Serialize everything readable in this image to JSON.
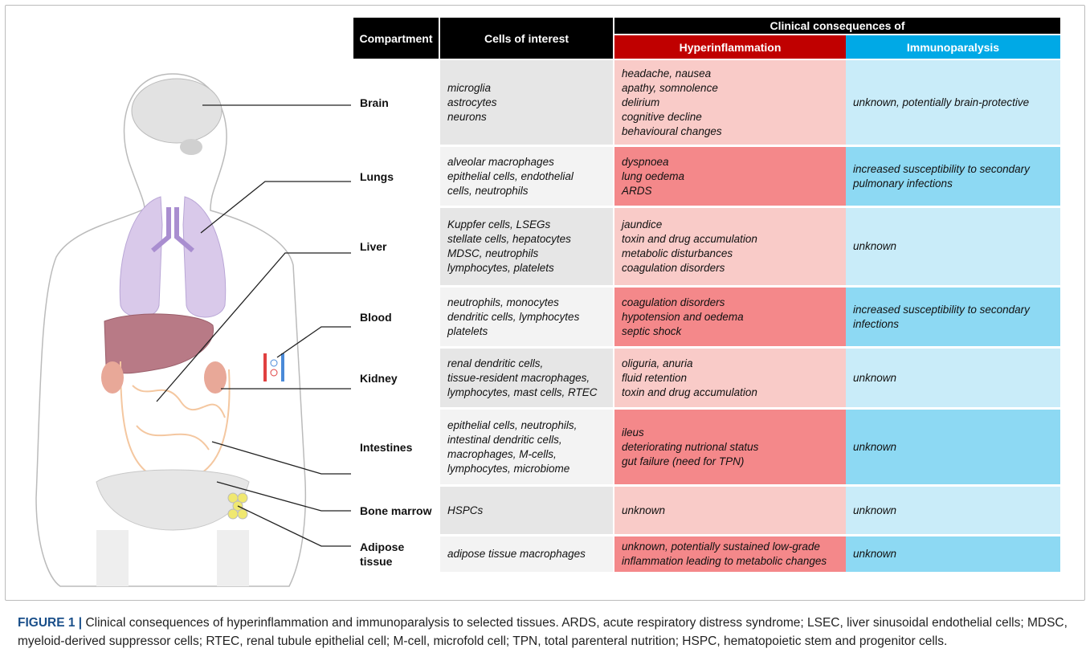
{
  "table": {
    "headers": {
      "compartment": "Compartment",
      "cells": "Cells of interest",
      "clinical": "Clinical consequences of",
      "hyper": "Hyperinflammation",
      "immuno": "Immunoparalysis"
    },
    "header_colors": {
      "dark": "#000000",
      "hyper": "#c00000",
      "immuno": "#00a9e6"
    },
    "rows": [
      {
        "compartment": [
          "Brain"
        ],
        "cells": [
          "microglia",
          "astrocytes",
          "neurons"
        ],
        "hyper": [
          "headache, nausea",
          "apathy, somnolence",
          "delirium",
          "cognitive decline",
          "behavioural changes"
        ],
        "immuno": [
          "unknown, potentially brain-protective"
        ],
        "hyper_color": "#f9cbc8",
        "immuno_color": "#c9ecf9",
        "cells_color": "#e6e6e6"
      },
      {
        "compartment": [
          "Lungs"
        ],
        "cells": [
          "alveolar macrophages",
          "epithelial cells, endothelial",
          "cells, neutrophils"
        ],
        "hyper": [
          "dyspnoea",
          "lung oedema",
          "ARDS"
        ],
        "immuno": [
          "increased susceptibility to secondary",
          "pulmonary infections"
        ],
        "hyper_color": "#f4888a",
        "immuno_color": "#8dd9f3",
        "cells_color": "#f3f3f3"
      },
      {
        "compartment": [
          "Liver"
        ],
        "cells": [
          "Kuppfer cells, LSEGs",
          "stellate cells, hepatocytes",
          "MDSC, neutrophils",
          "lymphocytes,  platelets"
        ],
        "hyper": [
          "jaundice",
          "toxin and drug accumulation",
          "metabolic disturbances",
          "coagulation disorders"
        ],
        "immuno": [
          "unknown"
        ],
        "hyper_color": "#f9cbc8",
        "immuno_color": "#c9ecf9",
        "cells_color": "#e6e6e6"
      },
      {
        "compartment": [
          "Blood"
        ],
        "cells": [
          "neutrophils, monocytes",
          "dendritic cells, lymphocytes",
          "platelets"
        ],
        "hyper": [
          "coagulation disorders",
          "hypotension and oedema",
          "septic shock"
        ],
        "immuno": [
          "increased susceptibility to secondary",
          "infections"
        ],
        "hyper_color": "#f4888a",
        "immuno_color": "#8dd9f3",
        "cells_color": "#f3f3f3"
      },
      {
        "compartment": [
          "Kidney"
        ],
        "cells": [
          "renal dendritic cells,",
          "tissue-resident macrophages,",
          "lymphocytes, mast cells, RTEC"
        ],
        "hyper": [
          "oliguria, anuria",
          "fluid retention",
          "toxin and drug accumulation"
        ],
        "immuno": [
          "unknown"
        ],
        "hyper_color": "#f9cbc8",
        "immuno_color": "#c9ecf9",
        "cells_color": "#e6e6e6"
      },
      {
        "compartment": [
          "Intestines"
        ],
        "cells": [
          "epithelial cells, neutrophils,",
          "intestinal dendritic cells,",
          "macrophages, M-cells,",
          "lymphocytes, microbiome"
        ],
        "hyper": [
          "ileus",
          "deteriorating nutrional status",
          "gut failure (need for TPN)"
        ],
        "immuno": [
          "unknown"
        ],
        "hyper_color": "#f4888a",
        "immuno_color": "#8dd9f3",
        "cells_color": "#f3f3f3"
      },
      {
        "compartment": [
          "Bone marrow"
        ],
        "cells": [
          "HSPCs"
        ],
        "hyper": [
          "unknown"
        ],
        "immuno": [
          "unknown"
        ],
        "hyper_color": "#f9cbc8",
        "immuno_color": "#c9ecf9",
        "cells_color": "#e6e6e6"
      },
      {
        "compartment": [
          "Adipose",
          "tissue"
        ],
        "cells": [
          "adipose tissue macrophages"
        ],
        "hyper": [
          "unknown, potentially sustained low-grade",
          "inflammation leading to metabolic changes"
        ],
        "immuno": [
          "unknown"
        ],
        "hyper_color": "#f4888a",
        "immuno_color": "#8dd9f3",
        "cells_color": "#f3f3f3"
      }
    ]
  },
  "caption": {
    "label": "FIGURE 1 |",
    "text": "Clinical consequences of hyperinflammation and immunoparalysis to selected tissues. ARDS, acute respiratory distress syndrome; LSEC, liver sinusoidal endothelial cells; MDSC, myeloid-derived suppressor cells; RTEC, renal tubule epithelial cell; M-cell, microfold cell; TPN, total parenteral nutrition; HSPC, hematopoietic stem and progenitor cells."
  }
}
